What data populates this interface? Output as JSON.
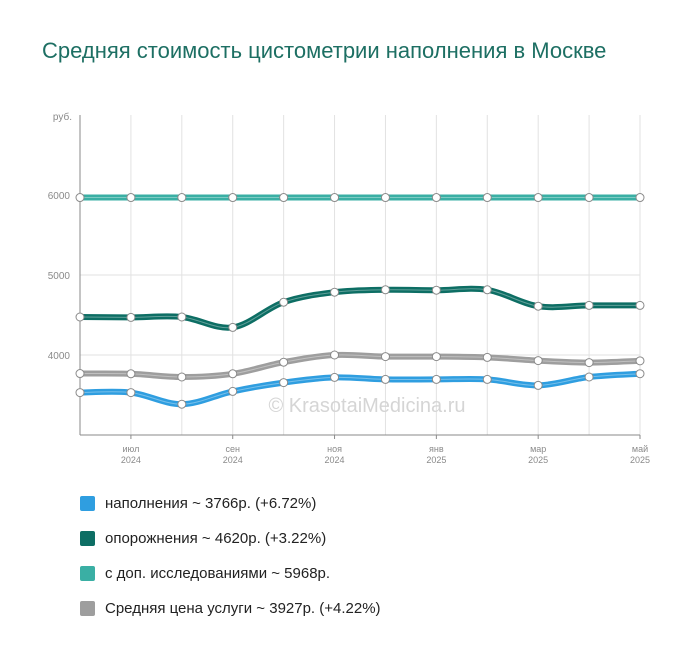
{
  "title": "Средняя стоимость цистометрии наполнения в Москве",
  "watermark": "© KrasotaiMedicina.ru",
  "chart_data": {
    "type": "line",
    "unit_label": "руб.",
    "ylim": [
      3000,
      7000
    ],
    "yticks": [
      4000,
      5000,
      6000
    ],
    "grid": true,
    "x_ticks": [
      {
        "i": 1,
        "month": "июл",
        "year": "2024"
      },
      {
        "i": 3,
        "month": "сен",
        "year": "2024"
      },
      {
        "i": 5,
        "month": "ноя",
        "year": "2024"
      },
      {
        "i": 7,
        "month": "янв",
        "year": "2025"
      },
      {
        "i": 9,
        "month": "мар",
        "year": "2025"
      },
      {
        "i": 11,
        "month": "май",
        "year": "2025"
      }
    ],
    "x": [
      "2024-06",
      "2024-07",
      "2024-08",
      "2024-09",
      "2024-10",
      "2024-11",
      "2024-12",
      "2025-01",
      "2025-02",
      "2025-03",
      "2025-04",
      "2025-05"
    ],
    "series": [
      {
        "name": "с доп. исследованиями",
        "color": "#3aafa4",
        "values": [
          5968,
          5968,
          5968,
          5968,
          5968,
          5968,
          5968,
          5968,
          5968,
          5968,
          5968,
          5968
        ]
      },
      {
        "name": "опорожнения",
        "color": "#0d6e64",
        "values": [
          4475,
          4470,
          4475,
          4345,
          4660,
          4785,
          4815,
          4810,
          4815,
          4610,
          4620,
          4620
        ]
      },
      {
        "name": "Средняя цена услуги",
        "color": "#9e9e9e",
        "values": [
          3768,
          3765,
          3725,
          3765,
          3910,
          4000,
          3980,
          3980,
          3970,
          3930,
          3905,
          3927
        ]
      },
      {
        "name": "наполнения",
        "color": "#2f9ee0",
        "values": [
          3530,
          3530,
          3385,
          3545,
          3655,
          3720,
          3695,
          3695,
          3695,
          3620,
          3725,
          3766
        ]
      }
    ]
  },
  "legend": [
    {
      "color": "#2f9ee0",
      "text": "наполнения ~ 3766р. (+6.72%)"
    },
    {
      "color": "#0d6e64",
      "text": "опорожнения ~ 4620р. (+3.22%)"
    },
    {
      "color": "#3aafa4",
      "text": "с доп. исследованиями ~ 5968р."
    },
    {
      "color": "#9e9e9e",
      "text": "Средняя цена услуги ~ 3927р. (+4.22%)"
    }
  ]
}
